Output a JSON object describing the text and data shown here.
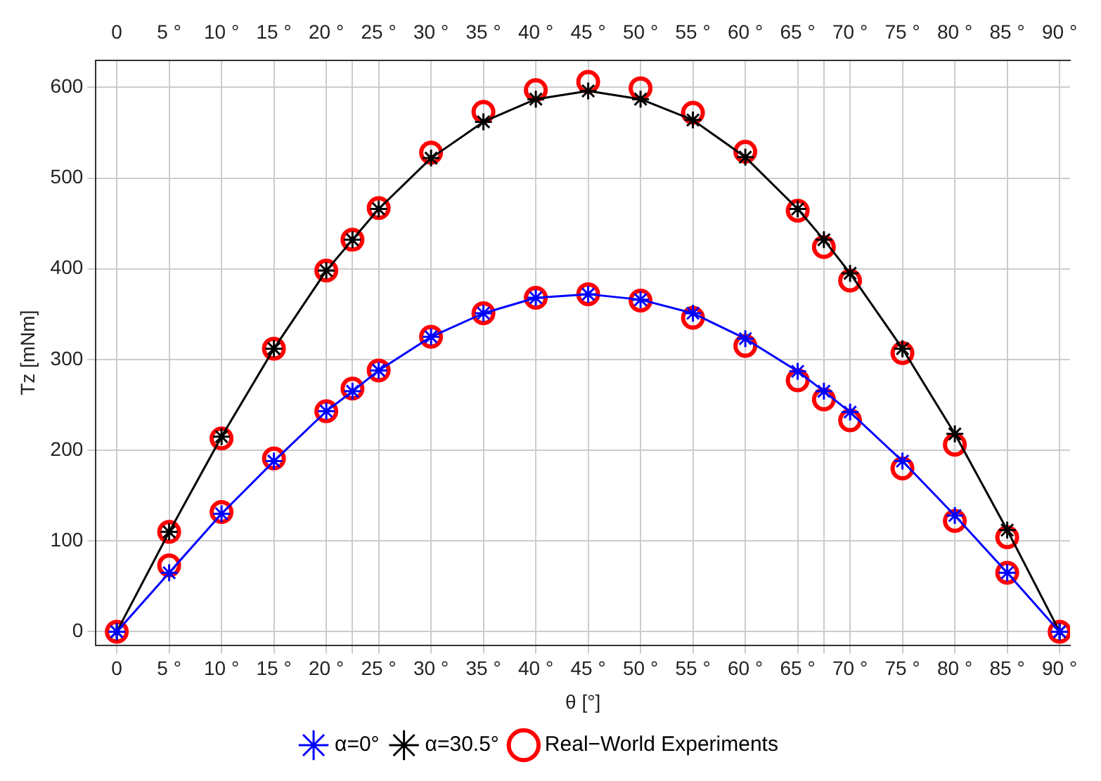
{
  "chart_data": {
    "type": "line",
    "xlabel": "θ [°]",
    "ylabel": "Tz [mNm]",
    "xlim": [
      -2,
      91
    ],
    "ylim": [
      -15,
      630
    ],
    "xticks": [
      0,
      {
        "value": 5,
        "label": "5 °"
      },
      {
        "value": 10,
        "label": "10 °"
      },
      {
        "value": 15,
        "label": "15 °"
      },
      {
        "value": 20,
        "label": "20 °"
      },
      {
        "value": 22.5,
        "label": null
      },
      {
        "value": 25,
        "label": "25 °"
      },
      {
        "value": 30,
        "label": "30 °"
      },
      {
        "value": 35,
        "label": "35 °"
      },
      {
        "value": 40,
        "label": "40 °"
      },
      {
        "value": 45,
        "label": "45 °"
      },
      {
        "value": 50,
        "label": "50 °"
      },
      {
        "value": 55,
        "label": "55 °"
      },
      {
        "value": 60,
        "label": "60 °"
      },
      {
        "value": 65,
        "label": "65 °"
      },
      {
        "value": 67.5,
        "label": null
      },
      {
        "value": 70,
        "label": "70 °"
      },
      {
        "value": 75,
        "label": "75 °"
      },
      {
        "value": 80,
        "label": "80 °"
      },
      {
        "value": 85,
        "label": "85 °"
      },
      {
        "value": 90,
        "label": "90 °"
      }
    ],
    "x2lim": [
      -2,
      91
    ],
    "x2ticks": [
      0,
      {
        "value": 5,
        "label": "5 °"
      },
      {
        "value": 10,
        "label": "10 °"
      },
      {
        "value": 15,
        "label": "15 °"
      },
      {
        "value": 20,
        "label": "20 °"
      },
      {
        "value": 22.5,
        "label": null
      },
      {
        "value": 25,
        "label": "25 °"
      },
      {
        "value": 30,
        "label": "30 °"
      },
      {
        "value": 35,
        "label": "35 °"
      },
      {
        "value": 40,
        "label": "40 °"
      },
      {
        "value": 45,
        "label": "45 °"
      },
      {
        "value": 50,
        "label": "50 °"
      },
      {
        "value": 55,
        "label": "55 °"
      },
      {
        "value": 60,
        "label": "60 °"
      },
      {
        "value": 65,
        "label": "65 °"
      },
      {
        "value": 67.5,
        "label": null
      },
      {
        "value": 70,
        "label": "70 °"
      },
      {
        "value": 75,
        "label": "75 °"
      },
      {
        "value": 80,
        "label": "80 °"
      },
      {
        "value": 85,
        "label": "85 °"
      },
      {
        "value": 90,
        "label": "90 °"
      }
    ],
    "yticks": [
      0,
      100,
      200,
      300,
      400,
      500,
      600
    ],
    "grid": true,
    "legend": "bottom",
    "series": [
      {
        "name": "α=0°",
        "color": "#0000ff",
        "marker": "cross",
        "x": [
          0,
          5,
          10,
          15,
          20,
          22.5,
          25,
          30,
          35,
          40,
          45,
          50,
          55,
          60,
          65,
          67.5,
          70,
          75,
          80,
          85,
          90
        ],
        "values": [
          0,
          65,
          130,
          188,
          243,
          265,
          288,
          325,
          351,
          368,
          372,
          366,
          351,
          323,
          287,
          265,
          242,
          188,
          128,
          65,
          0
        ]
      },
      {
        "name": "α=30.5°",
        "color": "#000000",
        "marker": "cross",
        "x": [
          0,
          5,
          10,
          15,
          20,
          22.5,
          25,
          30,
          35,
          40,
          45,
          50,
          55,
          60,
          65,
          67.5,
          70,
          75,
          80,
          85,
          90
        ],
        "values": [
          0,
          110,
          215,
          312,
          398,
          432,
          466,
          522,
          562,
          587,
          596,
          587,
          564,
          523,
          466,
          432,
          395,
          312,
          218,
          112,
          0
        ]
      },
      {
        "name": "Real−World Experiments",
        "color": "#ff0000",
        "type": "scatter",
        "marker": "circle",
        "x": [
          0,
          5,
          5,
          10,
          10,
          15,
          15,
          20,
          20,
          22.5,
          22.5,
          25,
          25,
          30,
          30,
          35,
          35,
          40,
          40,
          45,
          45,
          50,
          50,
          55,
          55,
          60,
          60,
          65,
          65,
          67.5,
          67.5,
          70,
          70,
          75,
          75,
          80,
          80,
          85,
          85,
          90
        ],
        "values": [
          0,
          110,
          73,
          213,
          132,
          312,
          191,
          398,
          243,
          432,
          268,
          467,
          288,
          528,
          325,
          573,
          351,
          597,
          368,
          606,
          372,
          599,
          365,
          572,
          346,
          529,
          315,
          464,
          277,
          424,
          256,
          387,
          233,
          307,
          180,
          206,
          122,
          104,
          65,
          0
        ]
      }
    ]
  }
}
